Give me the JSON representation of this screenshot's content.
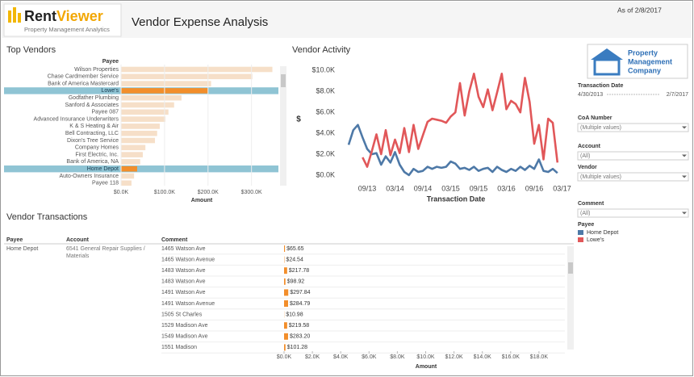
{
  "header": {
    "logo_main": "Rent",
    "logo_accent": "Viewer",
    "logo_tagline": "Property Management Analytics",
    "title": "Vendor Expense Analysis",
    "as_of": "As of 2/8/2017"
  },
  "company_logo": [
    "Property",
    "Management",
    "Company"
  ],
  "chart_data": [
    {
      "type": "hbar",
      "title": "Top Vendors",
      "category_header": "Payee",
      "xlabel": "Amount",
      "categories": [
        "Wilson Properties",
        "Chase Cardmember Service",
        "Bank of America Mastercard",
        "Lowe's",
        "Godfather Plumbing",
        "Sanford & Associates",
        "Payee 087",
        "Advanced Insurance Underwriters",
        "K & S Heating & Air",
        "Bell Contracting, LLC",
        "Dixon's Tree Service",
        "Company Homes",
        "First Electric, Inc.",
        "Bank of America, NA",
        "Home Depot",
        "Auto-Owners Insurance",
        "Payee 118"
      ],
      "values": [
        348000,
        302000,
        207000,
        200000,
        139000,
        122000,
        109000,
        102000,
        89000,
        83000,
        78000,
        56000,
        50000,
        44000,
        37000,
        30000,
        24000
      ],
      "selected": [
        false,
        false,
        false,
        true,
        false,
        false,
        false,
        false,
        false,
        false,
        false,
        false,
        false,
        false,
        true,
        false,
        false
      ],
      "color": "#f6dfc8",
      "selected_color": "#f28e2b",
      "row_color": "#8fc4d4",
      "xlim": [
        0,
        360000
      ],
      "xticks": [
        {
          "value": 0,
          "label": "$0.0K"
        },
        {
          "value": 100000,
          "label": "$100.0K"
        },
        {
          "value": 200000,
          "label": "$200.0K"
        },
        {
          "value": 300000,
          "label": "$300.0K"
        }
      ],
      "grid": true
    },
    {
      "type": "line",
      "title": "Vendor Activity",
      "ylabel": "$",
      "xlabel": "Transaction Date",
      "legend_title": "Payee",
      "x": [
        "05/13",
        "06/13",
        "07/13",
        "08/13",
        "09/13",
        "10/13",
        "11/13",
        "12/13",
        "01/14",
        "02/14",
        "03/14",
        "04/14",
        "05/14",
        "06/14",
        "07/14",
        "08/14",
        "09/14",
        "10/14",
        "11/14",
        "12/14",
        "01/15",
        "02/15",
        "03/15",
        "04/15",
        "05/15",
        "06/15",
        "07/15",
        "08/15",
        "09/15",
        "10/15",
        "11/15",
        "12/15",
        "01/16",
        "02/16",
        "03/16",
        "04/16",
        "05/16",
        "06/16",
        "07/16",
        "08/16",
        "09/16",
        "10/16",
        "11/16",
        "12/16",
        "01/17",
        "02/17"
      ],
      "xticks": [
        "09/13",
        "03/14",
        "09/14",
        "03/15",
        "09/15",
        "03/16",
        "09/16"
      ],
      "xtick_last": "03/17",
      "series": [
        {
          "name": "Home Depot",
          "color": "#4e79a7",
          "values": [
            2900,
            4300,
            4800,
            3600,
            2500,
            2000,
            2100,
            1000,
            1800,
            1200,
            2200,
            1000,
            300,
            0,
            600,
            300,
            400,
            800,
            600,
            800,
            700,
            800,
            1300,
            1100,
            600,
            700,
            500,
            800,
            400,
            600,
            700,
            300,
            800,
            500,
            300,
            600,
            400,
            800,
            500,
            900,
            600,
            1500,
            400,
            300,
            600,
            200
          ]
        },
        {
          "name": "Lowe's",
          "color": "#e15759",
          "values": [
            null,
            null,
            null,
            1700,
            800,
            2300,
            3900,
            2000,
            4300,
            1900,
            3400,
            2100,
            4500,
            2200,
            4800,
            2500,
            3800,
            5100,
            5400,
            5300,
            5200,
            5000,
            5600,
            6000,
            8800,
            5700,
            8000,
            9700,
            7500,
            6500,
            8200,
            6200,
            7900,
            9700,
            6300,
            7100,
            6800,
            6000,
            9300,
            7000,
            3000,
            4800,
            1500,
            5400,
            5000,
            1200
          ]
        }
      ],
      "ylim": [
        -700,
        10800
      ],
      "yticks": [
        {
          "value": 0,
          "label": "$0.0K"
        },
        {
          "value": 2000,
          "label": "$2.0K"
        },
        {
          "value": 4000,
          "label": "$4.0K"
        },
        {
          "value": 6000,
          "label": "$6.0K"
        },
        {
          "value": 8000,
          "label": "$8.0K"
        },
        {
          "value": 10000,
          "label": "$10.0K"
        }
      ],
      "grid": false
    },
    {
      "type": "hbar",
      "xlabel": "Amount",
      "color": "#f28e2b",
      "values": [
        65.65,
        24.54,
        217.78,
        98.92,
        297.84,
        284.79,
        10.98,
        219.58,
        283.2,
        101.28
      ],
      "value_labels": [
        "$65.65",
        "$24.54",
        "$217.78",
        "$98.92",
        "$297.84",
        "$284.79",
        "$10.98",
        "$219.58",
        "$283.20",
        "$101.28"
      ],
      "xlim": [
        0,
        20000
      ],
      "xticks": [
        {
          "value": 0,
          "label": "$0.0K"
        },
        {
          "value": 2000,
          "label": "$2.0K"
        },
        {
          "value": 4000,
          "label": "$4.0K"
        },
        {
          "value": 6000,
          "label": "$6.0K"
        },
        {
          "value": 8000,
          "label": "$8.0K"
        },
        {
          "value": 10000,
          "label": "$10.0K"
        },
        {
          "value": 12000,
          "label": "$12.0K"
        },
        {
          "value": 14000,
          "label": "$14.0K"
        },
        {
          "value": 16000,
          "label": "$16.0K"
        },
        {
          "value": 18000,
          "label": "$18.0K"
        }
      ]
    }
  ],
  "transactions": {
    "title": "Vendor Transactions",
    "columns": [
      "Payee",
      "Account",
      "Comment"
    ],
    "payee": "Home Depot",
    "account": "6541 General Repair Supplies / Materials",
    "comments": [
      "1465 Watson Ave",
      "1465 Watson Avenue",
      "1483 Watson Ave",
      "1483 Watson Ave",
      "1491 Watson Ave",
      "1491 Watson Avenue",
      "1505 St Charles",
      "1529 Madison Ave",
      "1549 Madison Ave",
      "1551 Madison"
    ]
  },
  "date_filter": {
    "label": "Transaction Date",
    "start": "4/30/2013",
    "end": "2/7/2017"
  },
  "filters": [
    {
      "label": "CoA Number",
      "value": "(Multiple values)"
    },
    {
      "label": "Account",
      "value": "(All)"
    },
    {
      "label": "Vendor",
      "value": "(Multiple values)"
    },
    {
      "label": "Comment",
      "value": "(All)"
    }
  ]
}
